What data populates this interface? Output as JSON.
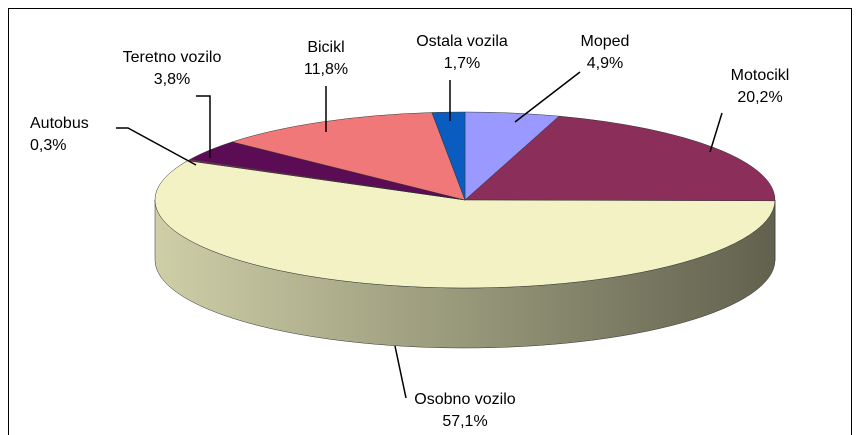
{
  "chart_data": {
    "type": "pie3d",
    "categories": [
      "Moped",
      "Motocikl",
      "Osobno vozilo",
      "Autobus",
      "Teretno vozilo",
      "Bicikl",
      "Ostala vozila"
    ],
    "values": [
      4.9,
      20.2,
      57.1,
      0.3,
      3.8,
      11.8,
      1.7
    ],
    "value_labels": [
      "4,9%",
      "20,2%",
      "57,1%",
      "0,3%",
      "3,8%",
      "11,8%",
      "1,7%"
    ],
    "colors": [
      "#9999ff",
      "#8b2e5a",
      "#f2f2c4",
      "#7a2a5a",
      "#5c0b55",
      "#f07878",
      "#0a5cc0"
    ]
  }
}
